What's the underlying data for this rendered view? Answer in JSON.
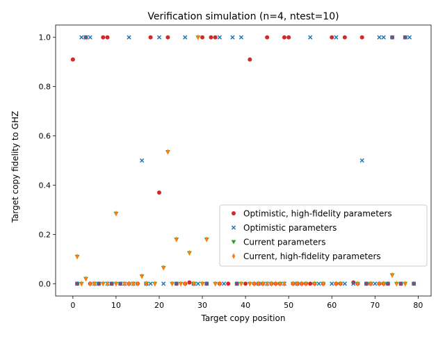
{
  "chart_data": {
    "type": "scatter",
    "title": "Verification simulation (n=4, ntest=10)",
    "xlabel": "Target copy position",
    "ylabel": "Target copy fidelity to GHZ",
    "xlim": [
      -4,
      83
    ],
    "ylim": [
      -0.05,
      1.05
    ],
    "xticks": [
      0,
      10,
      20,
      30,
      40,
      50,
      60,
      70,
      80
    ],
    "yticks": [
      0.0,
      0.2,
      0.4,
      0.6,
      0.8,
      1.0
    ],
    "ytick_labels": [
      "0.0",
      "0.2",
      "0.4",
      "0.6",
      "0.8",
      "1.0"
    ],
    "grid": false,
    "legend_position": "center-right",
    "series": [
      {
        "name": "Optimistic, high-fidelity parameters",
        "color": "#d62728",
        "marker": "circle",
        "points": [
          [
            0,
            0.91
          ],
          [
            3,
            1.0
          ],
          [
            7,
            1.0
          ],
          [
            8,
            1.0
          ],
          [
            18,
            1.0
          ],
          [
            20,
            0.37
          ],
          [
            22,
            1.0
          ],
          [
            27,
            0.005
          ],
          [
            30,
            1.0
          ],
          [
            32,
            1.0
          ],
          [
            33,
            1.0
          ],
          [
            36,
            0.0
          ],
          [
            38,
            0.0
          ],
          [
            40,
            0.0
          ],
          [
            41,
            0.91
          ],
          [
            45,
            1.0
          ],
          [
            49,
            1.0
          ],
          [
            50,
            1.0
          ],
          [
            55,
            0.0
          ],
          [
            60,
            1.0
          ],
          [
            63,
            1.0
          ],
          [
            65,
            0.005
          ],
          [
            67,
            1.0
          ],
          [
            74,
            1.0
          ],
          [
            77,
            1.0
          ],
          [
            1,
            0.0
          ],
          [
            4,
            0.0
          ],
          [
            6,
            0.0
          ],
          [
            9,
            0.0
          ],
          [
            11,
            0.0
          ],
          [
            13,
            0.0
          ],
          [
            15,
            0.0
          ],
          [
            17,
            0.0
          ],
          [
            24,
            0.0
          ],
          [
            26,
            0.0
          ],
          [
            28,
            0.0
          ],
          [
            31,
            0.0
          ],
          [
            34,
            0.0
          ],
          [
            42,
            0.0
          ],
          [
            43,
            0.0
          ],
          [
            44,
            0.0
          ],
          [
            46,
            0.0
          ],
          [
            47,
            0.0
          ],
          [
            48,
            0.0
          ],
          [
            51,
            0.0
          ],
          [
            52,
            0.0
          ],
          [
            53,
            0.0
          ],
          [
            54,
            0.0
          ],
          [
            56,
            0.0
          ],
          [
            58,
            0.0
          ],
          [
            61,
            0.0
          ],
          [
            62,
            0.0
          ],
          [
            66,
            0.0
          ],
          [
            68,
            0.0
          ],
          [
            69,
            0.0
          ],
          [
            71,
            0.0
          ],
          [
            72,
            0.0
          ],
          [
            73,
            0.0
          ],
          [
            76,
            0.0
          ],
          [
            79,
            0.0
          ]
        ]
      },
      {
        "name": "Optimistic parameters",
        "color": "#1f77b4",
        "marker": "x",
        "points": [
          [
            2,
            1.0
          ],
          [
            3,
            1.0
          ],
          [
            4,
            1.0
          ],
          [
            13,
            1.0
          ],
          [
            20,
            1.0
          ],
          [
            26,
            1.0
          ],
          [
            34,
            1.0
          ],
          [
            37,
            1.0
          ],
          [
            39,
            1.0
          ],
          [
            55,
            1.0
          ],
          [
            61,
            1.0
          ],
          [
            71,
            1.0
          ],
          [
            72,
            1.0
          ],
          [
            74,
            1.0
          ],
          [
            77,
            1.0
          ],
          [
            78,
            1.0
          ],
          [
            16,
            0.5
          ],
          [
            67,
            0.5
          ],
          [
            1,
            0.0
          ],
          [
            5,
            0.0
          ],
          [
            6,
            0.0
          ],
          [
            8,
            0.0
          ],
          [
            9,
            0.0
          ],
          [
            11,
            0.0
          ],
          [
            12,
            0.0
          ],
          [
            14,
            0.0
          ],
          [
            17,
            0.0
          ],
          [
            18,
            0.0
          ],
          [
            21,
            0.0
          ],
          [
            24,
            0.0
          ],
          [
            28,
            0.0
          ],
          [
            29,
            0.0
          ],
          [
            31,
            0.0
          ],
          [
            35,
            0.0
          ],
          [
            38,
            0.0
          ],
          [
            43,
            0.0
          ],
          [
            45,
            0.0
          ],
          [
            49,
            0.0
          ],
          [
            52,
            0.0
          ],
          [
            57,
            0.0
          ],
          [
            60,
            0.0
          ],
          [
            63,
            0.0
          ],
          [
            65,
            0.0
          ],
          [
            68,
            0.0
          ],
          [
            70,
            0.0
          ],
          [
            73,
            0.0
          ],
          [
            76,
            0.0
          ],
          [
            79,
            0.0
          ]
        ]
      },
      {
        "name": "Current parameters",
        "color": "#2ca02c",
        "marker": "triangle-down",
        "points": [
          [
            1,
            0.11
          ],
          [
            3,
            0.02
          ],
          [
            10,
            0.285
          ],
          [
            16,
            0.03
          ],
          [
            21,
            0.065
          ],
          [
            22,
            0.535
          ],
          [
            24,
            0.18
          ],
          [
            27,
            0.125
          ],
          [
            29,
            1.0
          ],
          [
            31,
            0.18
          ],
          [
            74,
            0.035
          ],
          [
            2,
            0.0
          ],
          [
            5,
            0.0
          ],
          [
            7,
            0.0
          ],
          [
            10,
            0.0
          ],
          [
            14,
            0.0
          ],
          [
            17,
            0.0
          ],
          [
            19,
            0.0
          ],
          [
            23,
            0.0
          ],
          [
            25,
            0.0
          ],
          [
            28,
            0.0
          ],
          [
            30,
            0.0
          ],
          [
            33,
            0.0
          ],
          [
            39,
            0.0
          ],
          [
            41,
            0.0
          ],
          [
            44,
            0.0
          ],
          [
            46,
            0.0
          ],
          [
            48,
            0.0
          ],
          [
            51,
            0.0
          ],
          [
            54,
            0.0
          ],
          [
            56,
            0.0
          ],
          [
            58,
            0.0
          ],
          [
            62,
            0.0
          ],
          [
            66,
            0.0
          ],
          [
            69,
            0.0
          ],
          [
            72,
            0.0
          ],
          [
            75,
            0.0
          ],
          [
            77,
            0.0
          ]
        ]
      },
      {
        "name": "Current, high-fidelity parameters",
        "color": "#ff7f0e",
        "marker": "thin-diamond",
        "points": [
          [
            1,
            0.11
          ],
          [
            3,
            0.02
          ],
          [
            10,
            0.285
          ],
          [
            16,
            0.03
          ],
          [
            21,
            0.065
          ],
          [
            22,
            0.535
          ],
          [
            24,
            0.18
          ],
          [
            27,
            0.125
          ],
          [
            29,
            1.0
          ],
          [
            31,
            0.18
          ],
          [
            74,
            0.035
          ],
          [
            2,
            0.0
          ],
          [
            4,
            0.0
          ],
          [
            5,
            0.0
          ],
          [
            7,
            0.0
          ],
          [
            8,
            0.0
          ],
          [
            10,
            0.0
          ],
          [
            12,
            0.0
          ],
          [
            13,
            0.0
          ],
          [
            14,
            0.0
          ],
          [
            15,
            0.0
          ],
          [
            17,
            0.0
          ],
          [
            19,
            0.0
          ],
          [
            23,
            0.0
          ],
          [
            25,
            0.0
          ],
          [
            26,
            0.0
          ],
          [
            28,
            0.0
          ],
          [
            30,
            0.0
          ],
          [
            33,
            0.0
          ],
          [
            34,
            0.0
          ],
          [
            39,
            0.0
          ],
          [
            41,
            0.0
          ],
          [
            42,
            0.0
          ],
          [
            43,
            0.0
          ],
          [
            44,
            0.0
          ],
          [
            45,
            0.0
          ],
          [
            46,
            0.0
          ],
          [
            47,
            0.0
          ],
          [
            48,
            0.0
          ],
          [
            49,
            0.0
          ],
          [
            51,
            0.0
          ],
          [
            52,
            0.0
          ],
          [
            53,
            0.0
          ],
          [
            54,
            0.0
          ],
          [
            56,
            0.0
          ],
          [
            58,
            0.0
          ],
          [
            61,
            0.0
          ],
          [
            62,
            0.0
          ],
          [
            66,
            0.0
          ],
          [
            69,
            0.0
          ],
          [
            71,
            0.0
          ],
          [
            72,
            0.0
          ],
          [
            75,
            0.0
          ],
          [
            77,
            0.0
          ]
        ]
      }
    ]
  }
}
